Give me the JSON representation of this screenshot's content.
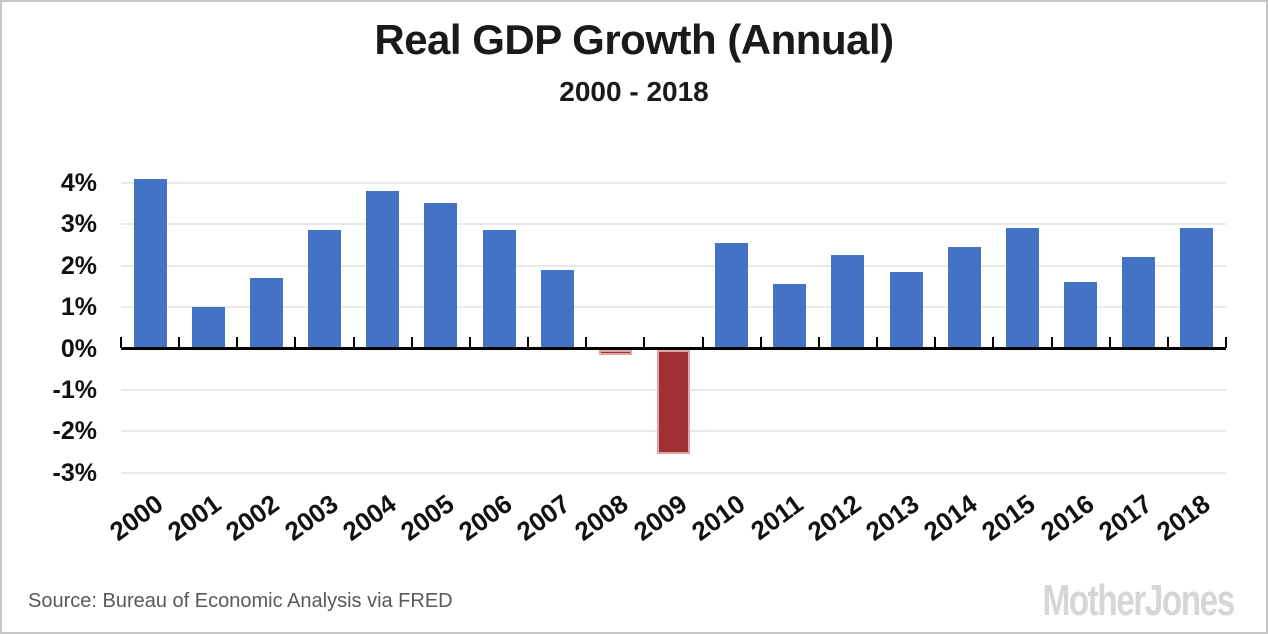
{
  "header": {
    "title": "Real GDP Growth (Annual)",
    "subtitle": "2000 - 2018"
  },
  "chart_data": {
    "type": "bar",
    "title": "Real GDP Growth (Annual)",
    "subtitle": "2000 - 2018",
    "categories": [
      "2000",
      "2001",
      "2002",
      "2003",
      "2004",
      "2005",
      "2006",
      "2007",
      "2008",
      "2009",
      "2010",
      "2011",
      "2012",
      "2013",
      "2014",
      "2015",
      "2016",
      "2017",
      "2018"
    ],
    "values": [
      4.1,
      1.0,
      1.7,
      2.85,
      3.8,
      3.5,
      2.85,
      1.9,
      -0.15,
      -2.55,
      2.55,
      1.55,
      2.25,
      1.85,
      2.45,
      2.9,
      1.6,
      2.2,
      2.9
    ],
    "unit": "%",
    "xlabel": "",
    "ylabel": "",
    "ylim": [
      -3,
      4.5
    ],
    "y_ticks": [
      4,
      3,
      2,
      1,
      0,
      -1,
      -2,
      -3
    ],
    "y_tick_labels": [
      "4%",
      "3%",
      "2%",
      "1%",
      "0%",
      "-1%",
      "-2%",
      "-3%"
    ],
    "grid": true,
    "legend": "none",
    "colors": {
      "positive_bar": "#4472C4",
      "negative_bar": "#A03032",
      "negative_bar_border": "#DDA6A6",
      "gridline": "#e9e9e9",
      "axis": "#000000"
    }
  },
  "footer": {
    "source": "Source: Bureau of Economic Analysis via FRED",
    "logo": "MotherJones"
  }
}
